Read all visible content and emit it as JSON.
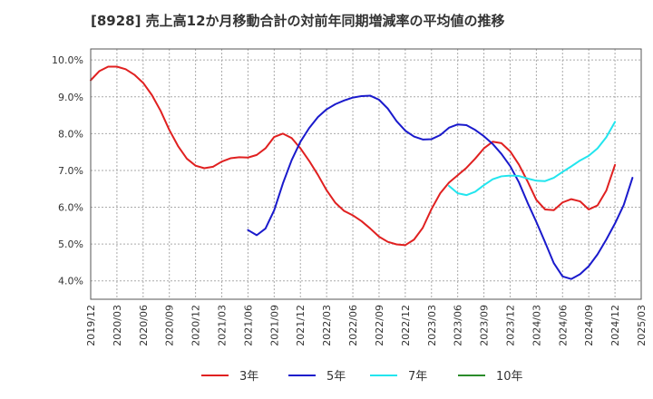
{
  "chart_data": {
    "type": "line",
    "title": "[8928]  売上高12か月移動合計の対前年同期増減率の平均値の推移",
    "xlabel": "",
    "ylabel": "",
    "x_ticks": [
      "2019/12",
      "2020/03",
      "2020/06",
      "2020/09",
      "2020/12",
      "2021/03",
      "2021/06",
      "2021/09",
      "2021/12",
      "2022/03",
      "2022/06",
      "2022/09",
      "2022/12",
      "2023/03",
      "2023/06",
      "2023/09",
      "2023/12",
      "2024/03",
      "2024/06",
      "2024/09",
      "2024/12",
      "2025/03"
    ],
    "y_ticks": [
      "4.0%",
      "5.0%",
      "6.0%",
      "7.0%",
      "8.0%",
      "9.0%",
      "10.0%"
    ],
    "ylim": [
      3.5,
      10.3
    ],
    "xlim": [
      "2019/12",
      "2025/03"
    ],
    "grid": "horizontal-dashed",
    "legend_position": "bottom",
    "series": [
      {
        "name": "3年",
        "color": "#e02020",
        "start": "2019/12",
        "values": [
          9.45,
          9.7,
          9.82,
          9.82,
          9.75,
          9.6,
          9.38,
          9.05,
          8.62,
          8.1,
          7.66,
          7.32,
          7.13,
          7.06,
          7.1,
          7.24,
          7.33,
          7.36,
          7.35,
          7.42,
          7.6,
          7.91,
          8.0,
          7.88,
          7.6,
          7.26,
          6.88,
          6.46,
          6.12,
          5.9,
          5.78,
          5.62,
          5.42,
          5.2,
          5.06,
          4.99,
          4.97,
          5.12,
          5.44,
          5.95,
          6.38,
          6.67,
          6.87,
          7.07,
          7.32,
          7.6,
          7.78,
          7.74,
          7.52,
          7.16,
          6.7,
          6.2,
          5.94,
          5.92,
          6.13,
          6.22,
          6.16,
          5.94,
          6.05,
          6.45,
          7.15
        ]
      },
      {
        "name": "5年",
        "color": "#1a1acc",
        "start": "2021/06",
        "values": [
          5.38,
          5.24,
          5.42,
          5.92,
          6.65,
          7.28,
          7.78,
          8.15,
          8.45,
          8.66,
          8.8,
          8.9,
          8.98,
          9.02,
          9.03,
          8.92,
          8.68,
          8.34,
          8.08,
          7.92,
          7.84,
          7.85,
          7.96,
          8.16,
          8.25,
          8.23,
          8.1,
          7.93,
          7.72,
          7.45,
          7.12,
          6.68,
          6.12,
          5.6,
          5.05,
          4.48,
          4.12,
          4.05,
          4.18,
          4.4,
          4.72,
          5.12,
          5.56,
          6.06,
          6.8
        ]
      },
      {
        "name": "7年",
        "color": "#22e5ee",
        "start": "2023/05",
        "values": [
          6.58,
          6.38,
          6.33,
          6.42,
          6.6,
          6.76,
          6.84,
          6.86,
          6.85,
          6.78,
          6.72,
          6.71,
          6.8,
          6.96,
          7.11,
          7.27,
          7.4,
          7.6,
          7.9,
          8.32
        ]
      },
      {
        "name": "10年",
        "color": "#2a8c2a",
        "start": "2024/12",
        "values": []
      }
    ]
  }
}
